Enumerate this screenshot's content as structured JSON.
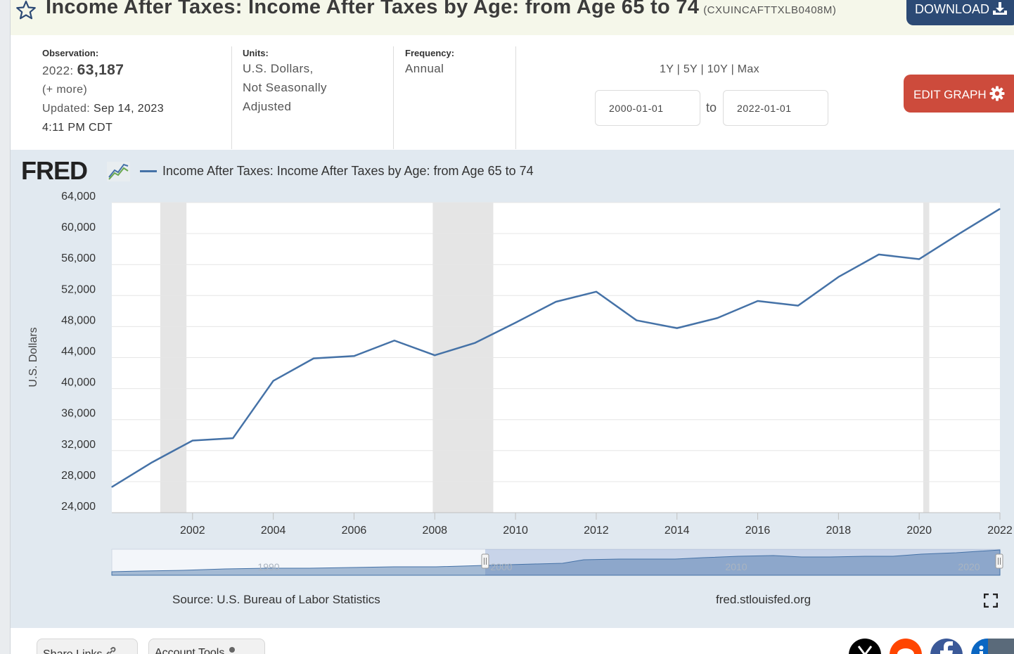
{
  "header": {
    "title": "Income After Taxes: Income After Taxes by Age: from Age 65 to 74",
    "series_id": "(CXUINCAFTTXLB0408M)",
    "download_label": "DOWNLOAD"
  },
  "meta": {
    "observation_label": "Observation:",
    "observation_period": "2022:",
    "observation_value": "63,187",
    "more_link": "(+ more)",
    "updated_label": "Updated:",
    "updated_date": "Sep 14, 2023",
    "updated_time": "4:11 PM CDT",
    "units_label": "Units:",
    "units_line1": "U.S. Dollars,",
    "units_line2": "Not Seasonally",
    "units_line3": "Adjusted",
    "frequency_label": "Frequency:",
    "frequency_value": "Annual"
  },
  "controls": {
    "range_1y": "1Y",
    "range_5y": "5Y",
    "range_10y": "10Y",
    "range_max": "Max",
    "separator": "|",
    "start_date": "2000-01-01",
    "to_label": "to",
    "end_date": "2022-01-01",
    "edit_graph_label": "EDIT GRAPH"
  },
  "graph": {
    "logo_text": "FRED",
    "legend_label": "Income After Taxes: Income After Taxes by Age: from Age 65 to 74",
    "source": "Source: U.S. Bureau of Labor Statistics",
    "site": "fred.stlouisfed.org"
  },
  "bottom": {
    "share_links_label": "Share Links",
    "account_tools_label": "Account Tools"
  },
  "colors": {
    "series_line": "#4572a7",
    "recession_band": "#e5e5e5",
    "plot_bg": "#ffffff",
    "graph_bg": "#e1e9f0",
    "download_button": "#2c4a75",
    "edit_button": "#cd4b3c"
  },
  "chart_data": {
    "type": "line",
    "title": "Income After Taxes: Income After Taxes by Age: from Age 65 to 74",
    "xlabel": "",
    "ylabel": "U.S. Dollars",
    "x": [
      2000,
      2001,
      2002,
      2003,
      2004,
      2005,
      2006,
      2007,
      2008,
      2009,
      2010,
      2011,
      2012,
      2013,
      2014,
      2015,
      2016,
      2017,
      2018,
      2019,
      2020,
      2021,
      2022
    ],
    "series": [
      {
        "name": "Income After Taxes: Income After Taxes by Age: from Age 65 to 74",
        "values": [
          27300,
          30500,
          33300,
          33600,
          41000,
          43900,
          44200,
          46200,
          44300,
          45900,
          48500,
          51200,
          52500,
          48800,
          47800,
          49100,
          51300,
          50700,
          54400,
          57300,
          56700,
          60000,
          63187
        ]
      }
    ],
    "recessions": [
      [
        2001.2,
        2001.85
      ],
      [
        2007.95,
        2009.45
      ],
      [
        2020.1,
        2020.25
      ]
    ],
    "x_ticks": [
      "2002",
      "2004",
      "2006",
      "2008",
      "2010",
      "2012",
      "2014",
      "2016",
      "2018",
      "2020",
      "2022"
    ],
    "y_ticks": [
      "24,000",
      "28,000",
      "32,000",
      "36,000",
      "40,000",
      "44,000",
      "48,000",
      "52,000",
      "56,000",
      "60,000",
      "64,000"
    ],
    "xlim": [
      2000,
      2022
    ],
    "ylim": [
      24000,
      64000
    ],
    "grid": true,
    "legend_position": "top-left",
    "navigator_labels": [
      "1990",
      "2000",
      "2010",
      "2020"
    ]
  }
}
